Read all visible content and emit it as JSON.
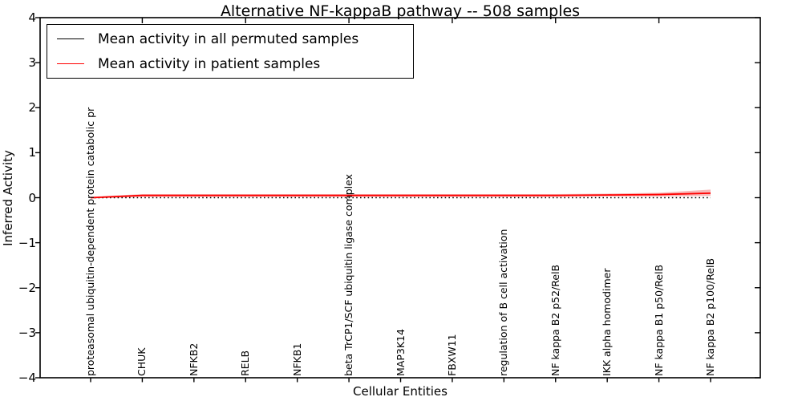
{
  "figure": {
    "title": "Alternative NF-kappaB pathway -- 508 samples",
    "xlabel": "Cellular Entities",
    "ylabel": "Inferred Activity"
  },
  "legend": {
    "position": "upper left",
    "entries": [
      {
        "label": "Mean activity in all permuted samples",
        "color": "#000000"
      },
      {
        "label": "Mean activity in patient samples",
        "color": "#ff0000"
      }
    ]
  },
  "chart_data": {
    "type": "line",
    "title": "Alternative NF-kappaB pathway -- 508 samples",
    "xlabel": "Cellular Entities",
    "ylabel": "Inferred Activity",
    "ylim": [
      -4,
      4
    ],
    "yticks": [
      4,
      3,
      2,
      1,
      0,
      -1,
      -2,
      -3,
      -4
    ],
    "ytick_labels": [
      "4",
      "3",
      "2",
      "1",
      "0",
      "−1",
      "−2",
      "−3",
      "−4"
    ],
    "grid": false,
    "legend_position": "upper left",
    "categories": [
      "proteasomal ubiquitin-dependent protein catabolic pr",
      "CHUK",
      "NFKB2",
      "RELB",
      "NFKB1",
      "beta TrCP1/SCF ubiquitin ligase complex",
      "MAP3K14",
      "FBXW11",
      "regulation of B cell activation",
      "NF kappa B2 p52/RelB",
      "IKK alpha homodimer",
      "NF kappa B1 p50/RelB",
      "NF kappa B2 p100/RelB"
    ],
    "series": [
      {
        "name": "Mean activity in all permuted samples",
        "color": "#000000",
        "style": "dotted",
        "values": [
          0,
          0,
          0,
          0,
          0,
          0,
          0,
          0,
          0,
          0,
          0,
          0,
          0
        ]
      },
      {
        "name": "Mean activity in patient samples",
        "color": "#ff0000",
        "style": "solid",
        "band_color": "#f08080",
        "values": [
          0.0,
          0.05,
          0.05,
          0.05,
          0.05,
          0.05,
          0.05,
          0.05,
          0.05,
          0.05,
          0.06,
          0.07,
          0.1
        ],
        "band_upper": [
          0.02,
          0.08,
          0.08,
          0.08,
          0.08,
          0.08,
          0.08,
          0.08,
          0.08,
          0.08,
          0.09,
          0.11,
          0.18
        ],
        "band_lower": [
          -0.02,
          0.02,
          0.02,
          0.02,
          0.02,
          0.02,
          0.02,
          0.02,
          0.02,
          0.02,
          0.03,
          0.03,
          0.04
        ]
      }
    ]
  }
}
